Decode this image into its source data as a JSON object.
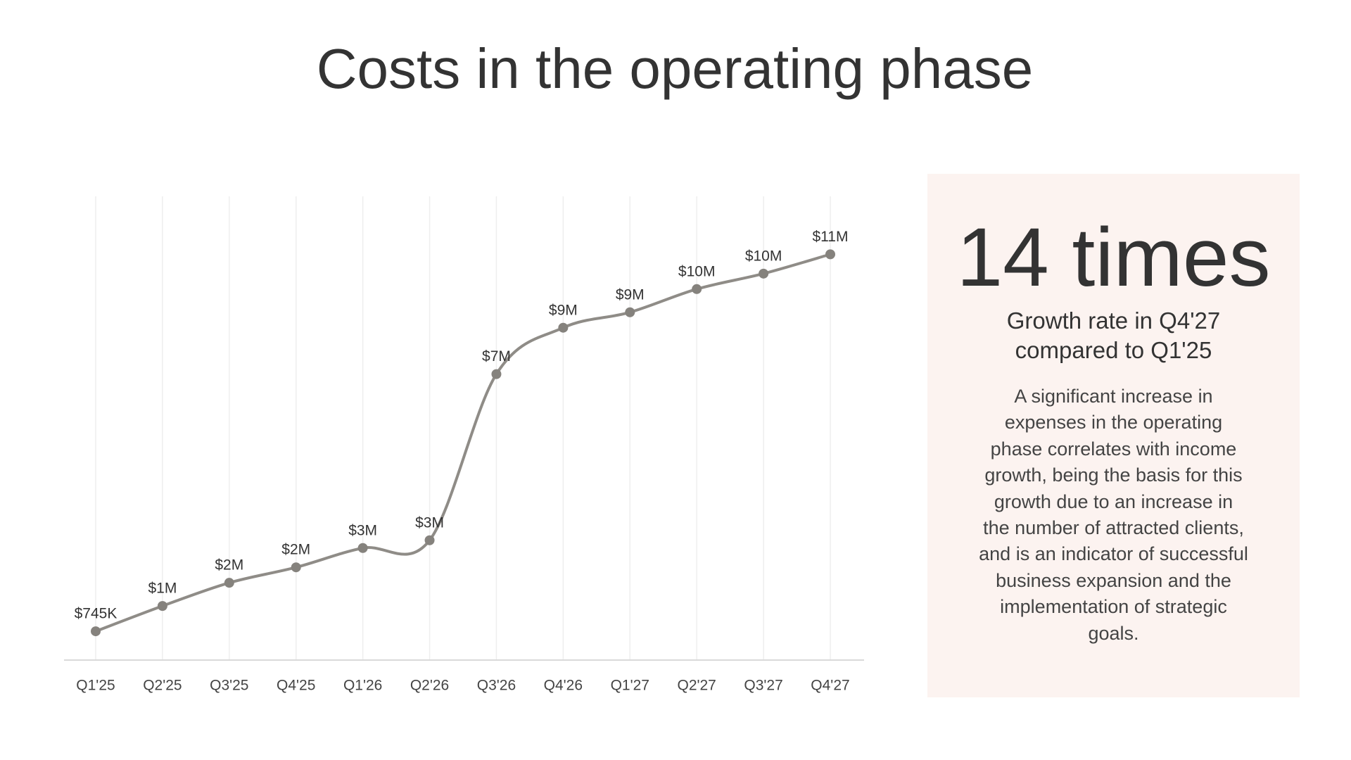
{
  "chart_data": {
    "type": "line",
    "title": "Costs in the operating phase",
    "categories": [
      "Q1'25",
      "Q2'25",
      "Q3'25",
      "Q4'25",
      "Q1'26",
      "Q2'26",
      "Q3'26",
      "Q4'26",
      "Q1'27",
      "Q2'27",
      "Q3'27",
      "Q4'27"
    ],
    "values": [
      745000,
      1400000,
      2000000,
      2400000,
      2900000,
      3100000,
      7400000,
      8600000,
      9000000,
      9600000,
      10000000,
      10500000
    ],
    "value_labels": [
      "$745K",
      "$1M",
      "$2M",
      "$2M",
      "$3M",
      "$3M",
      "$7M",
      "$9M",
      "$9M",
      "$10M",
      "$10M",
      "$11M"
    ],
    "color": "#8f8c87",
    "ylim": [
      0,
      12000000
    ],
    "grid": true
  },
  "highlight": {
    "headline": "14 times",
    "subtitle": [
      "Growth rate in Q4'27",
      "compared to Q1'25"
    ],
    "body": [
      "A significant increase in",
      "expenses in the operating",
      "phase correlates with income",
      "growth, being the basis for this",
      "growth due to an increase in",
      "the number of attracted clients,",
      "and is an indicator of successful",
      "business expansion and the",
      "implementation of strategic",
      "goals."
    ]
  }
}
